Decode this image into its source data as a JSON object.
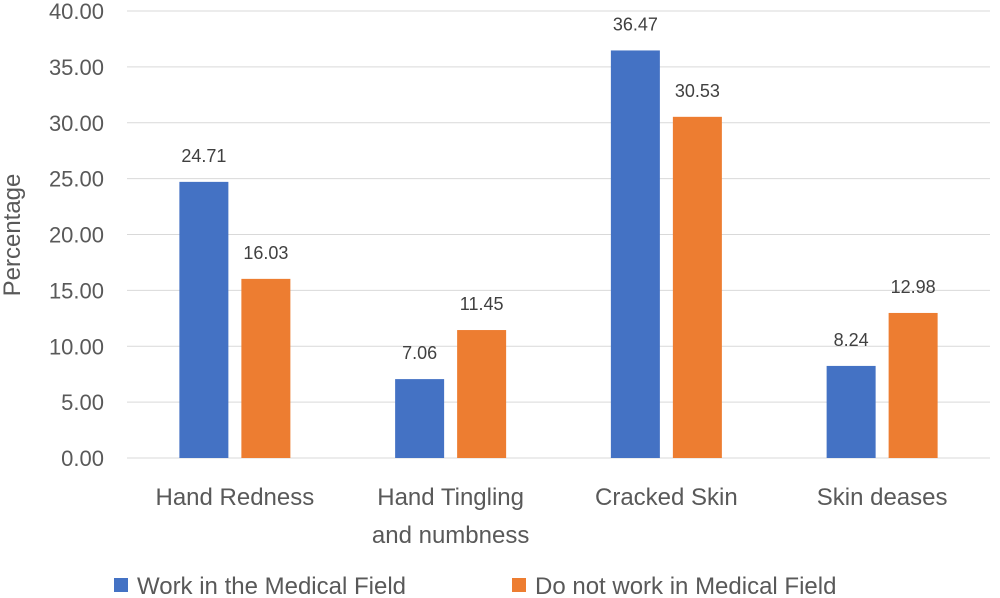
{
  "chart_data": {
    "type": "bar",
    "categories": [
      [
        "Hand Redness"
      ],
      [
        "Hand Tingling",
        "and numbness"
      ],
      [
        "Cracked Skin"
      ],
      [
        "Skin deases"
      ]
    ],
    "series": [
      {
        "name": "Work in the Medical Field",
        "color": "#4472c4",
        "values": [
          24.71,
          7.06,
          36.47,
          8.24
        ]
      },
      {
        "name": "Do not work in Medical Field",
        "color": "#ed7d31",
        "values": [
          16.03,
          11.45,
          30.53,
          12.98
        ]
      }
    ],
    "ylabel": "Percentage",
    "xlabel": "",
    "title": "",
    "ylim": [
      0,
      40
    ],
    "ytick_step": 5,
    "ytick_decimals": 2,
    "grid": true,
    "legend": "bottom"
  }
}
